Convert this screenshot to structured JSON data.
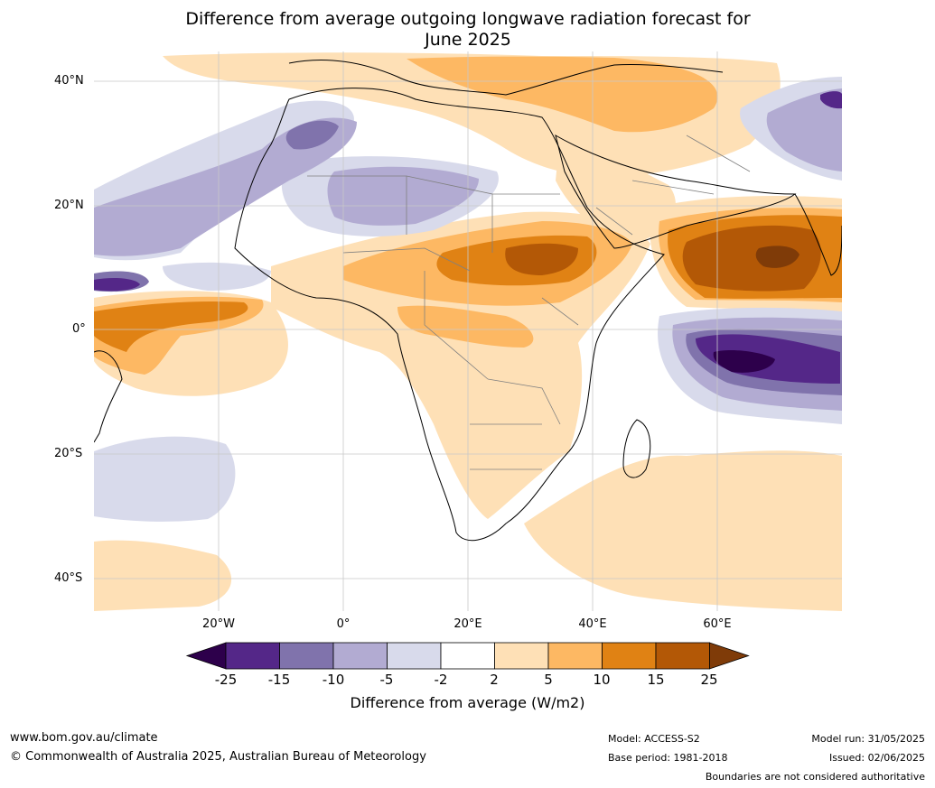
{
  "title_line1": "Difference from average outgoing longwave radiation forecast for",
  "title_line2": "June 2025",
  "lat_labels": [
    "40°N",
    "20°N",
    "0°",
    "20°S",
    "40°S"
  ],
  "lon_labels": [
    "20°W",
    "0°",
    "20°E",
    "40°E",
    "60°E"
  ],
  "colorbar": {
    "ticks": [
      "-25",
      "-15",
      "-10",
      "-5",
      "-2",
      "2",
      "5",
      "10",
      "15",
      "25"
    ],
    "colors": [
      "#2d004b",
      "#542788",
      "#8073ac",
      "#b2abd2",
      "#d8daeb",
      "#ffffff",
      "#fee0b6",
      "#fdb863",
      "#e08214",
      "#b35806",
      "#7f3b08"
    ],
    "label": "Difference from average (W/m2)"
  },
  "footer": {
    "website": "www.bom.gov.au/climate",
    "copyright": "© Commonwealth of Australia 2025, Australian Bureau of Meteorology",
    "model": "Model: ACCESS-S2",
    "base_period": "Base period: 1981-2018",
    "model_run": "Model run: 31/05/2025",
    "issued": "Issued: 02/06/2025",
    "disclaimer": "Boundaries are not considered authoritative"
  }
}
